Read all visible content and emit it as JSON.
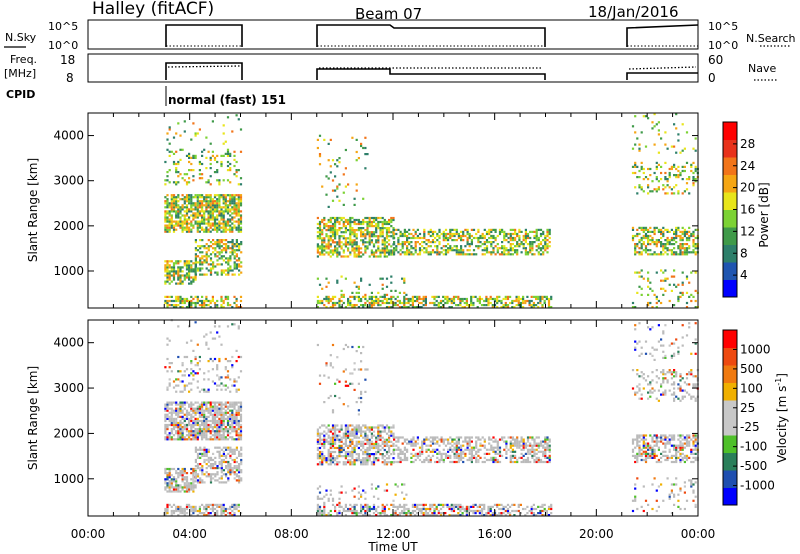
{
  "header": {
    "station": "Halley (fitACF)",
    "beam": "Beam 07",
    "date": "18/Jan/2016"
  },
  "panels": {
    "nsky_label": "N.Sky",
    "nsky_ticks": [
      "10^5",
      "10^0"
    ],
    "nsky_right_ticks": [
      "10^5",
      "10^0"
    ],
    "nsearch_label": "N.Search",
    "freq_label_1": "Freq.",
    "freq_label_2": "[MHz]",
    "freq_ticks": [
      "18",
      "8"
    ],
    "nave_ticks": [
      "60",
      "0"
    ],
    "nave_label": "Nave",
    "cpid_label": "CPID",
    "cpid_text": "normal (fast) 151"
  },
  "colors": {
    "power_scale": [
      "#0000ff",
      "#1f55b0",
      "#2d7f6a",
      "#3f9a49",
      "#7cd234",
      "#e8e51a",
      "#f5a614",
      "#f2751a",
      "#e8321b",
      "#ff0000"
    ],
    "velocity_scale": [
      "#0000ff",
      "#1f4fb0",
      "#2a7f5a",
      "#4fc02a",
      "#c8c8c8",
      "#c8c8c8",
      "#f0b000",
      "#f07a10",
      "#ee4a10",
      "#ff0000"
    ],
    "ground_scatter": "#bbbbbb"
  },
  "chart_data": [
    {
      "type": "heatmap",
      "name": "power",
      "ylabel": "Slant Range [km]",
      "xlabel": "",
      "colorbar_label": "Power [dB]",
      "colorbar_ticks": [
        "28",
        "24",
        "20",
        "16",
        "12",
        "8",
        "4"
      ],
      "colorbar_range": [
        0,
        32
      ],
      "ylim": [
        180,
        4500
      ],
      "y_ticks": [
        "4000",
        "3000",
        "2000",
        "1000"
      ],
      "xlim": [
        0,
        24
      ],
      "data_intervals": [
        [
          3.0,
          6.0
        ],
        [
          9.0,
          18.2
        ],
        [
          21.4,
          24.0
        ]
      ]
    },
    {
      "type": "heatmap",
      "name": "velocity",
      "ylabel": "Slant Range [km]",
      "xlabel": "Time UT",
      "colorbar_label": "Velocity [m s",
      "colorbar_label_sup": "-1",
      "colorbar_label_end": "]",
      "colorbar_ticks": [
        "1000",
        "500",
        "100",
        "25",
        "-25",
        "-100",
        "-500",
        "-1000"
      ],
      "ylim": [
        180,
        4500
      ],
      "y_ticks": [
        "4000",
        "3000",
        "2000",
        "1000"
      ],
      "x_ticks": [
        "00:00",
        "04:00",
        "08:00",
        "12:00",
        "16:00",
        "20:00",
        "00:00"
      ],
      "xlim": [
        0,
        24
      ],
      "data_intervals": [
        [
          3.0,
          6.0
        ],
        [
          9.0,
          18.2
        ],
        [
          21.4,
          24.0
        ]
      ]
    }
  ]
}
